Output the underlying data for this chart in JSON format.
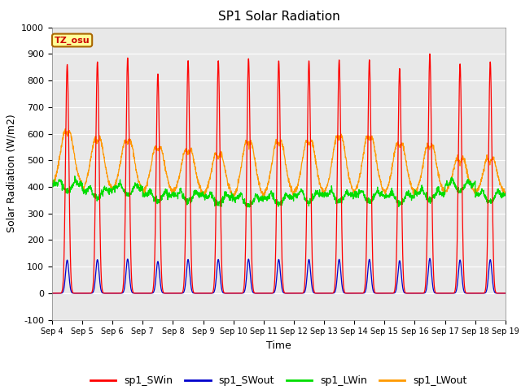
{
  "title": "SP1 Solar Radiation",
  "ylabel": "Solar Radiation (W/m2)",
  "xlabel": "Time",
  "ylim": [
    -100,
    1000
  ],
  "xlim": [
    0,
    15
  ],
  "tick_labels": [
    "Sep 4",
    "Sep 5",
    "Sep 6",
    "Sep 7",
    "Sep 8",
    "Sep 9",
    "Sep 10",
    "Sep 11",
    "Sep 12",
    "Sep 13",
    "Sep 14",
    "Sep 15",
    "Sep 16",
    "Sep 17",
    "Sep 18",
    "Sep 19"
  ],
  "colors": {
    "SWin": "#ff0000",
    "SWout": "#0000cc",
    "LWin": "#00dd00",
    "LWout": "#ff9900"
  },
  "bg_color": "#e8e8e8",
  "legend_labels": [
    "sp1_SWin",
    "sp1_SWout",
    "sp1_LWin",
    "sp1_LWout"
  ],
  "tz_label": "TZ_osu",
  "yticks": [
    -100,
    0,
    100,
    200,
    300,
    400,
    500,
    600,
    700,
    800,
    900,
    1000
  ],
  "sw_peaks": [
    860,
    870,
    885,
    825,
    875,
    875,
    883,
    875,
    875,
    878,
    878,
    845,
    900,
    862,
    870
  ],
  "lw_in_base": [
    410,
    385,
    395,
    370,
    370,
    360,
    355,
    360,
    370,
    370,
    370,
    365,
    375,
    410,
    370
  ],
  "lw_out_base": [
    400,
    380,
    380,
    370,
    370,
    360,
    355,
    360,
    365,
    368,
    370,
    365,
    368,
    375,
    370
  ],
  "lw_out_peak": [
    640,
    615,
    610,
    580,
    570,
    555,
    605,
    605,
    607,
    625,
    622,
    595,
    590,
    535,
    535
  ]
}
